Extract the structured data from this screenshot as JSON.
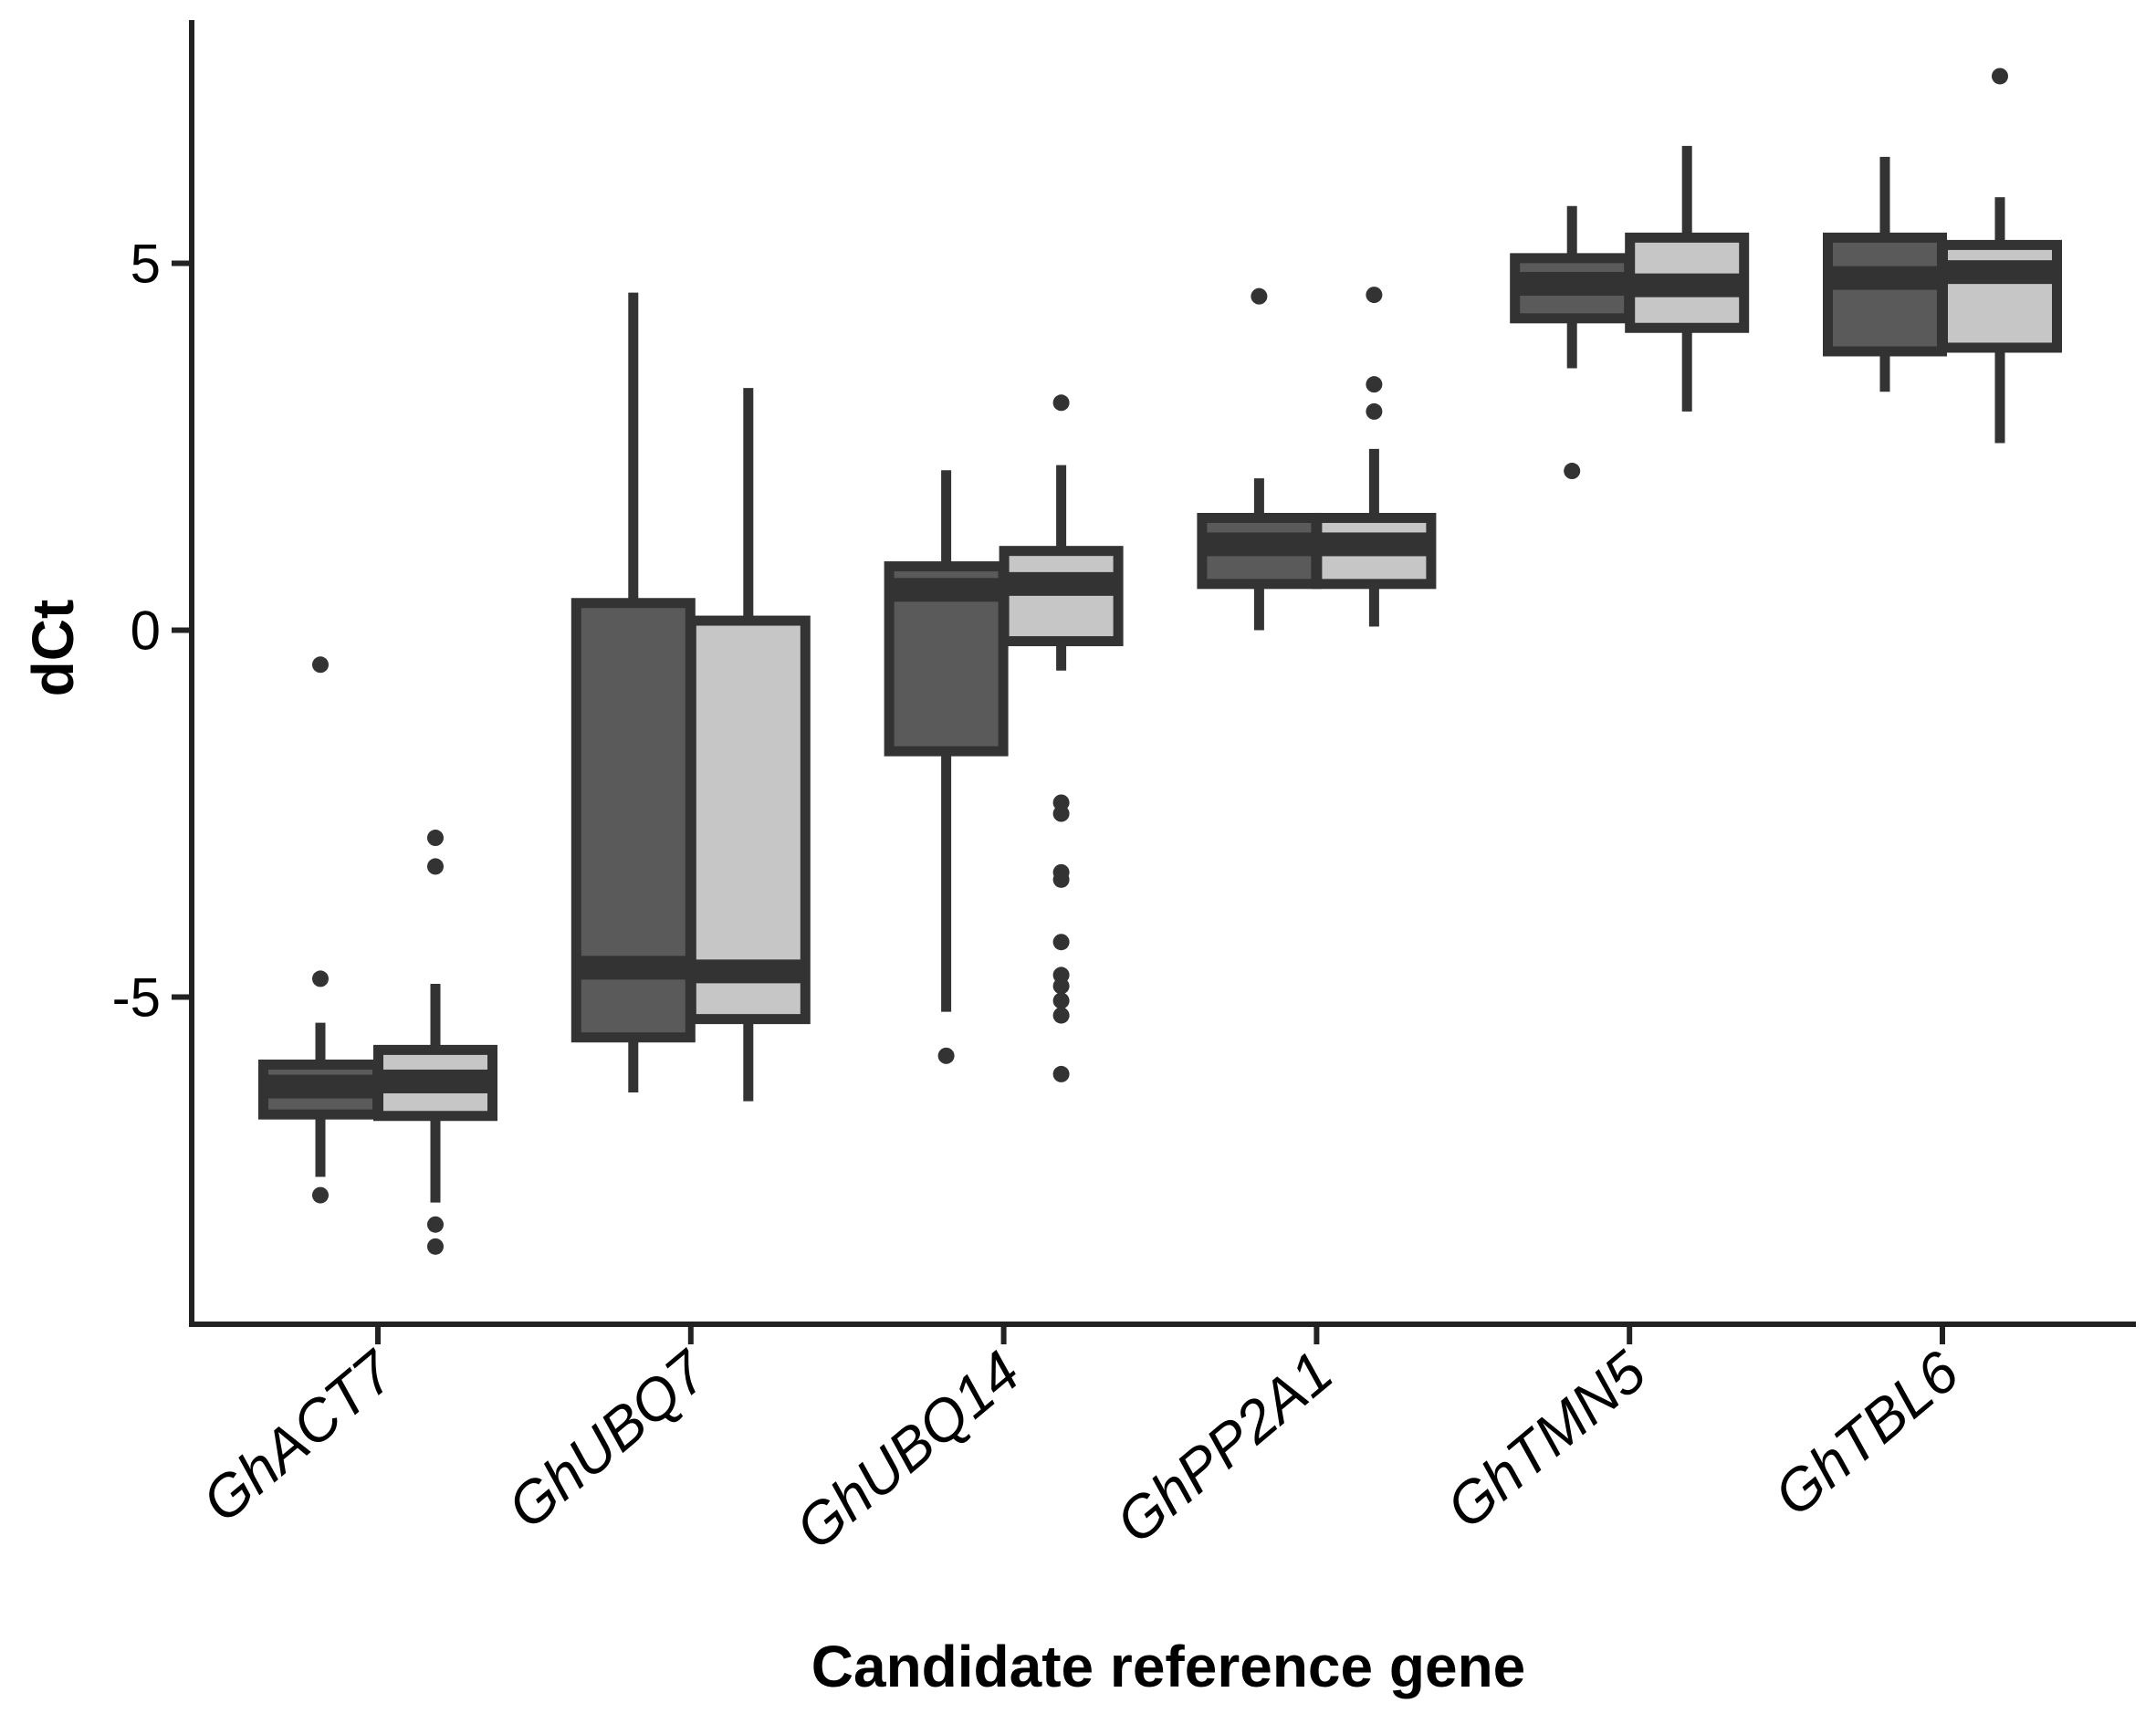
{
  "chart_data": {
    "type": "boxplot",
    "xlabel": "Candidate reference gene",
    "ylabel": "dCt",
    "ylim": [
      -9.4,
      8.3
    ],
    "yticks": [
      {
        "value": 5,
        "label": "5"
      },
      {
        "value": 0,
        "label": "0"
      },
      {
        "value": -5,
        "label": "-5"
      }
    ],
    "categories": [
      "GhACT7",
      "GhUBQ7",
      "GhUBQ14",
      "GhPP2A1",
      "GhTMN5",
      "GhTBL6"
    ],
    "series": [
      {
        "color": "#5a5a5a",
        "boxes": [
          {
            "q1": -6.6,
            "median": -6.22,
            "q3": -5.92,
            "whisker_low": -7.45,
            "whisker_high": -5.35,
            "outliers": [
              -0.47,
              -4.75,
              -7.7
            ]
          },
          {
            "q1": -5.55,
            "median": -4.6,
            "q3": 0.37,
            "whisker_low": -6.3,
            "whisker_high": 4.6,
            "outliers": []
          },
          {
            "q1": -1.65,
            "median": 0.55,
            "q3": 0.87,
            "whisker_low": -5.2,
            "whisker_high": 2.18,
            "outliers": [
              -5.8
            ]
          },
          {
            "q1": 0.63,
            "median": 1.17,
            "q3": 1.53,
            "whisker_low": 0.0,
            "whisker_high": 2.07,
            "outliers": [
              4.55
            ]
          },
          {
            "q1": 4.25,
            "median": 4.72,
            "q3": 5.07,
            "whisker_low": 3.57,
            "whisker_high": 5.78,
            "outliers": [
              2.17
            ]
          },
          {
            "q1": 3.8,
            "median": 4.8,
            "q3": 5.35,
            "whisker_low": 3.25,
            "whisker_high": 6.45,
            "outliers": []
          }
        ]
      },
      {
        "color": "#c6c6c6",
        "boxes": [
          {
            "q1": -6.62,
            "median": -6.15,
            "q3": -5.72,
            "whisker_low": -7.8,
            "whisker_high": -4.82,
            "outliers": [
              -2.83,
              -3.22,
              -8.1,
              -8.4
            ]
          },
          {
            "q1": -5.3,
            "median": -4.65,
            "q3": 0.13,
            "whisker_low": -6.42,
            "whisker_high": 3.3,
            "outliers": []
          },
          {
            "q1": -0.15,
            "median": 0.63,
            "q3": 1.08,
            "whisker_low": -0.55,
            "whisker_high": 2.25,
            "outliers": [
              3.1,
              -2.35,
              -2.5,
              -3.3,
              -3.4,
              -4.25,
              -4.7,
              -4.85,
              -5.05,
              -5.25,
              -6.05
            ]
          },
          {
            "q1": 0.63,
            "median": 1.17,
            "q3": 1.53,
            "whisker_low": 0.05,
            "whisker_high": 2.47,
            "outliers": [
              4.57,
              3.35,
              2.98
            ]
          },
          {
            "q1": 4.12,
            "median": 4.7,
            "q3": 5.35,
            "whisker_low": 2.98,
            "whisker_high": 6.6,
            "outliers": []
          },
          {
            "q1": 3.85,
            "median": 4.88,
            "q3": 5.25,
            "whisker_low": 2.55,
            "whisker_high": 5.9,
            "outliers": [
              7.55
            ]
          }
        ]
      }
    ],
    "grid": false,
    "legend": false
  }
}
